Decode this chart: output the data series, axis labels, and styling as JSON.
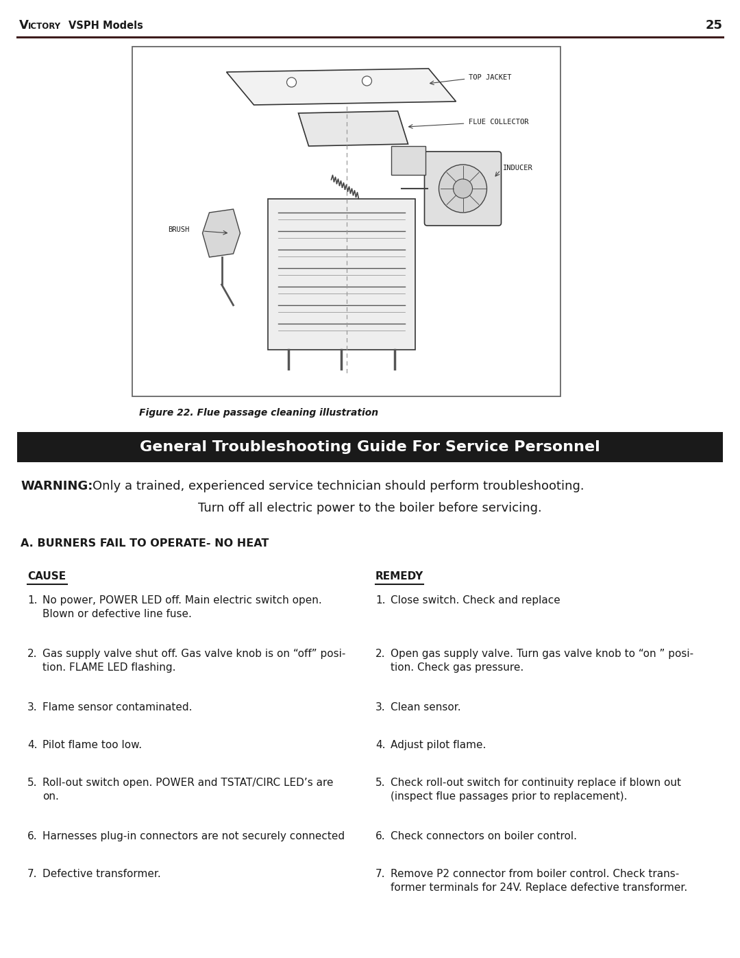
{
  "page_number": "25",
  "header_left_V": "V",
  "header_left_ictory": "ICTORY",
  "header_left_rest": "VSPH Models",
  "header_line_color": "#3d1c1c",
  "figure_caption": "Figure 22. Flue passage cleaning illustration",
  "section_banner_text": "General Troubleshooting Guide For Service Personnel",
  "section_banner_bg": "#1a1a1a",
  "section_banner_fg": "#ffffff",
  "warning_bold": "WARNING:",
  "warning_rest1": " Only a trained, experienced service technician should perform troubleshooting.",
  "warning_rest2": "Turn off all electric power to the boiler before servicing.",
  "subsection_title": "A. BURNERS FAIL TO OPERATE- NO HEAT",
  "col_cause_label": "CAUSE",
  "col_remedy_label": "REMEDY",
  "causes": [
    "No power, POWER LED off. Main electric switch open.\nBlown or defective line fuse.",
    "Gas supply valve shut off. Gas valve knob is on “off” posi-\ntion. FLAME LED flashing.",
    "Flame sensor contaminated.",
    "Pilot flame too low.",
    "Roll-out switch open. POWER and TSTAT/CIRC LED’s are\non.",
    "Harnesses plug-in connectors are not securely connected",
    "Defective transformer."
  ],
  "remedies": [
    "Close switch. Check and replace",
    "Open gas supply valve. Turn gas valve knob to “on ” posi-\ntion. Check gas pressure.",
    "Clean sensor.",
    "Adjust pilot flame.",
    "Check roll-out switch for continuity replace if blown out\n(inspect flue passages prior to replacement).",
    "Check connectors on boiler control.",
    "Remove P2 connector from boiler control. Check trans-\nformer terminals for 24V. Replace defective transformer."
  ],
  "bg_color": "#ffffff",
  "text_color": "#1a1a1a",
  "row_spacing": [
    78,
    78,
    55,
    55,
    78,
    55,
    78
  ]
}
